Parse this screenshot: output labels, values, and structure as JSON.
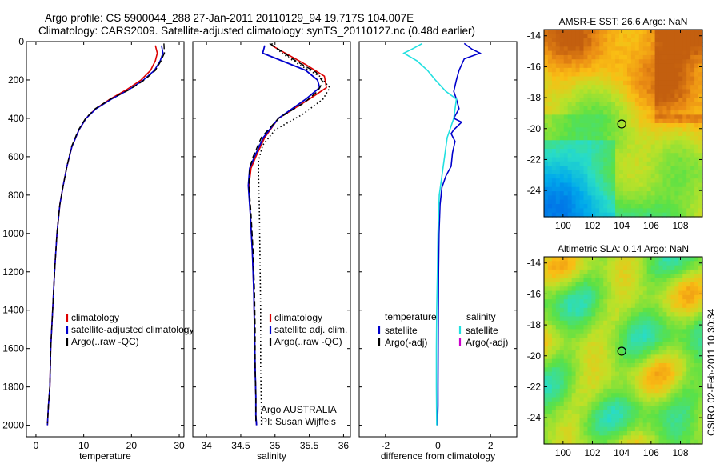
{
  "header": {
    "line1": "Argo profile: CS 5900044_288 27-Jan-2011 20110129_94 19.717S 104.007E",
    "line2": "Climatology: CARS2009. Satellite-adjusted climatology: synTS_20110127.nc (0.48d earlier)"
  },
  "credit": "CSIRO 02-Feb-2011 10:30:34",
  "colors": {
    "climatology": "#dd0000",
    "satellite": "#0000cc",
    "argo": "#000000",
    "satellite_salinity": "#22e0e0",
    "argo_salinity": "#cc00cc"
  },
  "chart_data": [
    {
      "id": "temperature",
      "type": "line",
      "xlabel": "temperature",
      "ylabel": "",
      "xlim": [
        -2,
        31
      ],
      "ylim": [
        2060,
        0
      ],
      "xticks": [
        0,
        10,
        20,
        30
      ],
      "yticks": [
        0,
        200,
        400,
        600,
        800,
        1000,
        1200,
        1400,
        1600,
        1800,
        2000
      ],
      "legend": [
        "climatology",
        "satellite-adjusted climatology",
        "Argo(..raw -QC)"
      ],
      "series": [
        {
          "name": "climatology",
          "color": "#dd0000",
          "style": "solid",
          "width": 1.6,
          "x": [
            25.0,
            25.4,
            25.0,
            24.0,
            22.0,
            19.0,
            15.5,
            12.5,
            10.5,
            9.0,
            7.5,
            6.5,
            5.7,
            5.0,
            4.4,
            3.9,
            3.5,
            3.1,
            2.9,
            2.6,
            2.4
          ],
          "y": [
            20,
            60,
            100,
            150,
            200,
            250,
            300,
            350,
            400,
            460,
            550,
            650,
            750,
            850,
            1000,
            1200,
            1400,
            1600,
            1800,
            1900,
            2000
          ]
        },
        {
          "name": "satellite-adjusted climatology",
          "color": "#0000cc",
          "style": "solid",
          "width": 1.6,
          "x": [
            26.3,
            26.6,
            26.0,
            24.8,
            22.5,
            19.5,
            15.8,
            12.6,
            10.5,
            9.0,
            7.5,
            6.5,
            5.7,
            5.0,
            4.4,
            3.9,
            3.5,
            3.1,
            2.9,
            2.6,
            2.4
          ],
          "y": [
            20,
            60,
            100,
            150,
            200,
            250,
            300,
            350,
            400,
            460,
            550,
            650,
            750,
            850,
            1000,
            1200,
            1400,
            1600,
            1800,
            1900,
            2000
          ]
        },
        {
          "name": "Argo(..raw -QC)",
          "color": "#000000",
          "style": "dashed",
          "width": 1.4,
          "x": [
            26.8,
            26.9,
            26.2,
            25.0,
            22.7,
            19.6,
            15.6,
            12.4,
            10.4,
            8.9,
            7.4,
            6.5,
            5.7,
            5.0,
            4.4,
            3.9,
            3.5,
            3.1,
            2.9,
            2.6,
            2.4
          ],
          "y": [
            10,
            60,
            100,
            150,
            200,
            250,
            300,
            350,
            400,
            460,
            550,
            650,
            750,
            850,
            1000,
            1200,
            1400,
            1600,
            1800,
            1900,
            1990
          ]
        }
      ]
    },
    {
      "id": "salinity",
      "type": "line",
      "xlabel": "salinity",
      "ylabel": "",
      "xlim": [
        33.8,
        36.1
      ],
      "ylim": [
        2060,
        0
      ],
      "xticks": [
        34,
        34.5,
        35,
        35.5,
        36
      ],
      "legend": [
        "climatology",
        "satellite adj. clim.",
        "Argo(..raw -QC)"
      ],
      "annotation": [
        "Argo AUSTRALIA",
        "PI: Susan Wijffels"
      ],
      "series": [
        {
          "name": "climatology",
          "color": "#dd0000",
          "style": "solid",
          "width": 1.6,
          "x": [
            34.95,
            35.15,
            35.45,
            35.72,
            35.75,
            35.5,
            35.05,
            34.85,
            34.72,
            34.65,
            34.62,
            34.64,
            34.67,
            34.69,
            34.7,
            34.71,
            34.72,
            34.72,
            34.73
          ],
          "y": [
            20,
            60,
            120,
            180,
            240,
            300,
            400,
            500,
            600,
            660,
            750,
            900,
            1100,
            1300,
            1500,
            1700,
            1850,
            1950,
            2000
          ]
        },
        {
          "name": "satellite adj. clim.",
          "color": "#0000cc",
          "style": "solid",
          "width": 1.8,
          "x": [
            34.85,
            34.82,
            35.1,
            35.45,
            35.62,
            35.65,
            35.45,
            35.05,
            34.83,
            34.7,
            34.63,
            34.61,
            34.64,
            34.67,
            34.69,
            34.7,
            34.71,
            34.72,
            34.72,
            34.73
          ],
          "y": [
            20,
            60,
            100,
            150,
            200,
            240,
            300,
            400,
            500,
            600,
            660,
            750,
            900,
            1100,
            1300,
            1500,
            1700,
            1850,
            1950,
            2000
          ]
        },
        {
          "name": "Argo(..raw -QC)",
          "color": "#000000",
          "style": "dashed",
          "width": 1.5,
          "x": [
            34.92,
            35.05,
            35.3,
            35.6,
            35.7,
            35.62,
            35.42,
            35.05,
            34.8,
            34.68,
            34.63,
            34.62,
            34.65,
            34.68,
            34.7,
            34.71,
            34.71,
            34.72,
            34.72
          ],
          "y": [
            10,
            40,
            100,
            160,
            210,
            260,
            320,
            400,
            500,
            600,
            660,
            750,
            900,
            1100,
            1300,
            1500,
            1700,
            1850,
            1990
          ]
        },
        {
          "name": "Argo dotted",
          "color": "#000000",
          "style": "dotted",
          "width": 1.6,
          "x": [
            34.95,
            35.1,
            35.35,
            35.65,
            35.8,
            35.7,
            35.4,
            35.0,
            34.82,
            34.76,
            34.76,
            34.77,
            34.78,
            34.79,
            34.79,
            34.8,
            34.8
          ],
          "y": [
            10,
            60,
            120,
            180,
            240,
            300,
            380,
            460,
            540,
            620,
            700,
            850,
            1100,
            1400,
            1700,
            1900,
            2000
          ]
        }
      ]
    },
    {
      "id": "difference",
      "type": "line",
      "xlabel": "difference from climatology",
      "ylabel": "",
      "xlim": [
        -3,
        3
      ],
      "ylim": [
        2060,
        0
      ],
      "xticks": [
        -2,
        0,
        2
      ],
      "legend_temperature": {
        "title": "temperature",
        "items": [
          "satellite",
          "Argo(-adj)"
        ]
      },
      "legend_salinity": {
        "title": "salinity",
        "items": [
          "satellite",
          "Argo(-adj)"
        ]
      },
      "series": [
        {
          "name": "temperature satellite",
          "color": "#0000cc",
          "style": "solid",
          "width": 1.6,
          "x": [
            1.0,
            1.3,
            1.6,
            1.0,
            0.8,
            0.7,
            0.6,
            0.7,
            0.8,
            0.6,
            0.9,
            0.6,
            0.5,
            0.65,
            0.55,
            0.5,
            0.3,
            0.15,
            0.08,
            0.04,
            0.02,
            0.01,
            0.0,
            0.0,
            -0.02
          ],
          "y": [
            10,
            40,
            60,
            90,
            150,
            200,
            260,
            300,
            350,
            400,
            420,
            460,
            480,
            520,
            580,
            650,
            700,
            760,
            850,
            1000,
            1200,
            1500,
            1800,
            1900,
            2000
          ]
        },
        {
          "name": "salinity satellite",
          "color": "#22e0e0",
          "style": "solid",
          "width": 1.6,
          "x": [
            -0.6,
            -1.0,
            -1.3,
            -0.8,
            -0.4,
            -0.1,
            0.3,
            0.7,
            0.6,
            0.35,
            0.25,
            0.15,
            0.05,
            0.0,
            -0.02,
            -0.05,
            -0.06,
            -0.06,
            -0.05
          ],
          "y": [
            10,
            40,
            60,
            100,
            150,
            200,
            260,
            300,
            400,
            500,
            600,
            700,
            800,
            1000,
            1200,
            1400,
            1600,
            1800,
            2000
          ]
        },
        {
          "name": "zero",
          "color": "#000000",
          "style": "dotted",
          "width": 1.0,
          "x": [
            0,
            0
          ],
          "y": [
            0,
            2060
          ]
        }
      ]
    },
    {
      "id": "sst_map",
      "type": "heatmap",
      "title": "AMSR-E SST: 26.6 Argo: NaN",
      "xlim": [
        98.7,
        109.5
      ],
      "ylim": [
        -25.7,
        -13.6
      ],
      "xticks": [
        100,
        102,
        104,
        106,
        108
      ],
      "yticks": [
        -14,
        -16,
        -18,
        -20,
        -22,
        -24
      ],
      "marker": {
        "lon": 104.0,
        "lat": -19.7
      }
    },
    {
      "id": "sla_map",
      "type": "heatmap",
      "title": "Altimetric SLA: 0.14 Argo: NaN",
      "xlim": [
        98.7,
        109.5
      ],
      "ylim": [
        -25.7,
        -13.6
      ],
      "xticks": [
        100,
        102,
        104,
        106,
        108
      ],
      "yticks": [
        -14,
        -16,
        -18,
        -20,
        -22,
        -24
      ],
      "marker": {
        "lon": 104.0,
        "lat": -19.7
      }
    }
  ]
}
